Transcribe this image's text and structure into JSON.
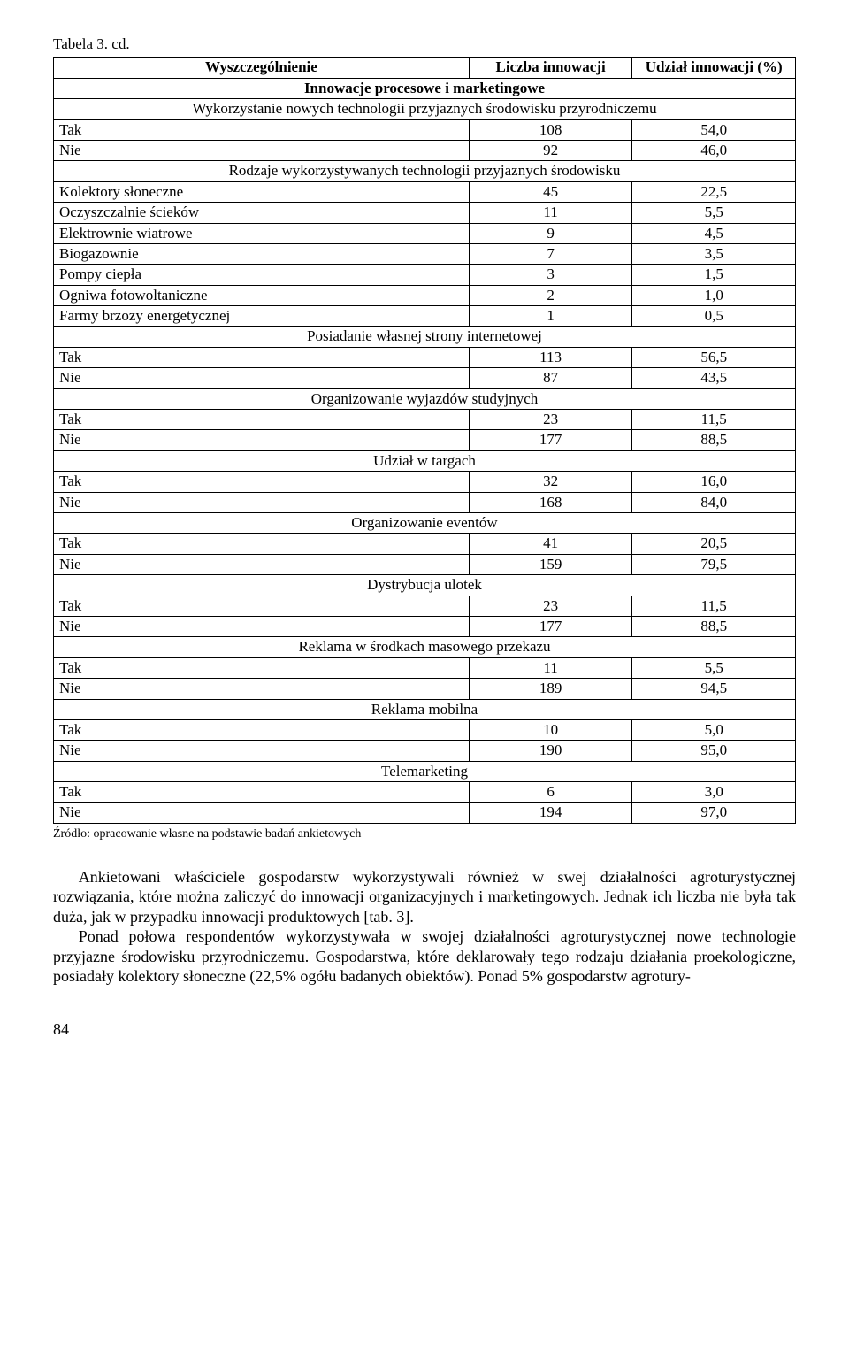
{
  "caption": "Tabela 3. cd.",
  "headers": {
    "c0": "Wyszczególnienie",
    "c1": "Liczba innowacji",
    "c2": "Udział innowacji (%)"
  },
  "title_row": "Innowacje procesowe i marketingowe",
  "sections": [
    {
      "heading": "Wykorzystanie nowych technologii przyjaznych środowisku przyrodniczemu",
      "rows": [
        {
          "label": "Tak",
          "n": "108",
          "p": "54,0"
        },
        {
          "label": "Nie",
          "n": "92",
          "p": "46,0"
        }
      ]
    },
    {
      "heading": "Rodzaje wykorzystywanych technologii przyjaznych środowisku",
      "rows": [
        {
          "label": "Kolektory słoneczne",
          "n": "45",
          "p": "22,5"
        },
        {
          "label": "Oczyszczalnie ścieków",
          "n": "11",
          "p": "5,5"
        },
        {
          "label": "Elektrownie wiatrowe",
          "n": "9",
          "p": "4,5"
        },
        {
          "label": "Biogazownie",
          "n": "7",
          "p": "3,5"
        },
        {
          "label": "Pompy ciepła",
          "n": "3",
          "p": "1,5"
        },
        {
          "label": "Ogniwa fotowoltaniczne",
          "n": "2",
          "p": "1,0"
        },
        {
          "label": "Farmy brzozy energetycznej",
          "n": "1",
          "p": "0,5"
        }
      ]
    },
    {
      "heading": "Posiadanie własnej strony internetowej",
      "rows": [
        {
          "label": "Tak",
          "n": "113",
          "p": "56,5"
        },
        {
          "label": "Nie",
          "n": "87",
          "p": "43,5"
        }
      ]
    },
    {
      "heading": "Organizowanie wyjazdów studyjnych",
      "rows": [
        {
          "label": "Tak",
          "n": "23",
          "p": "11,5"
        },
        {
          "label": "Nie",
          "n": "177",
          "p": "88,5"
        }
      ]
    },
    {
      "heading": "Udział w targach",
      "rows": [
        {
          "label": "Tak",
          "n": "32",
          "p": "16,0"
        },
        {
          "label": "Nie",
          "n": "168",
          "p": "84,0"
        }
      ]
    },
    {
      "heading": "Organizowanie eventów",
      "rows": [
        {
          "label": "Tak",
          "n": "41",
          "p": "20,5"
        },
        {
          "label": "Nie",
          "n": "159",
          "p": "79,5"
        }
      ]
    },
    {
      "heading": "Dystrybucja ulotek",
      "rows": [
        {
          "label": "Tak",
          "n": "23",
          "p": "11,5"
        },
        {
          "label": "Nie",
          "n": "177",
          "p": "88,5"
        }
      ]
    },
    {
      "heading": "Reklama w środkach masowego przekazu",
      "rows": [
        {
          "label": "Tak",
          "n": "11",
          "p": "5,5"
        },
        {
          "label": "Nie",
          "n": "189",
          "p": "94,5"
        }
      ]
    },
    {
      "heading": "Reklama mobilna",
      "rows": [
        {
          "label": "Tak",
          "n": "10",
          "p": "5,0"
        },
        {
          "label": "Nie",
          "n": "190",
          "p": "95,0"
        }
      ]
    },
    {
      "heading": "Telemarketing",
      "rows": [
        {
          "label": "Tak",
          "n": "6",
          "p": "3,0"
        },
        {
          "label": "Nie",
          "n": "194",
          "p": "97,0"
        }
      ]
    }
  ],
  "source": "Źródło: opracowanie własne na podstawie badań ankietowych",
  "para1": "Ankietowani właściciele gospodarstw wykorzystywali również w swej działalności agroturystycznej rozwiązania, które można zaliczyć do innowacji organizacyjnych i marketingowych. Jednak ich liczba nie była tak duża, jak w przypadku innowacji produktowych [tab. 3].",
  "para2": "Ponad połowa respondentów wykorzystywała w swojej działalności agroturystycznej nowe technologie przyjazne środowisku przyrodniczemu. Gospodarstwa, które deklarowały tego rodzaju działania proekologiczne, posiadały kolektory słoneczne (22,5% ogółu badanych obiektów). Ponad 5% gospodarstw agrotury-",
  "page": "84"
}
